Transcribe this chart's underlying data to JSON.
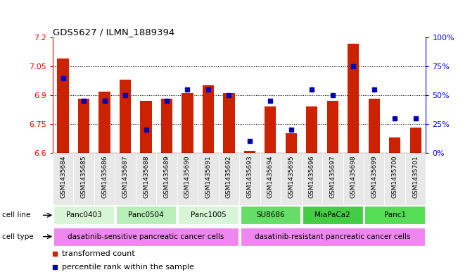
{
  "title": "GDS5627 / ILMN_1889394",
  "samples": [
    "GSM1435684",
    "GSM1435685",
    "GSM1435686",
    "GSM1435687",
    "GSM1435688",
    "GSM1435689",
    "GSM1435690",
    "GSM1435691",
    "GSM1435692",
    "GSM1435693",
    "GSM1435694",
    "GSM1435695",
    "GSM1435696",
    "GSM1435697",
    "GSM1435698",
    "GSM1435699",
    "GSM1435700",
    "GSM1435701"
  ],
  "bar_values": [
    7.09,
    6.88,
    6.92,
    6.98,
    6.87,
    6.88,
    6.91,
    6.95,
    6.91,
    6.61,
    6.84,
    6.7,
    6.84,
    6.87,
    7.17,
    6.88,
    6.68,
    6.73
  ],
  "blue_percentile": [
    65,
    45,
    45,
    50,
    20,
    45,
    55,
    55,
    50,
    10,
    45,
    20,
    55,
    50,
    75,
    55,
    30,
    30
  ],
  "ylim": [
    6.6,
    7.2
  ],
  "yticks": [
    6.6,
    6.75,
    6.9,
    7.05,
    7.2
  ],
  "ytick_labels": [
    "6.6",
    "6.75",
    "6.9",
    "7.05",
    "7.2"
  ],
  "right_yticks": [
    0,
    25,
    50,
    75,
    100
  ],
  "right_ytick_labels": [
    "0%",
    "25%",
    "50%",
    "75%",
    "100%"
  ],
  "bar_color": "#cc2200",
  "blue_color": "#0000bb",
  "bar_bottom": 6.6,
  "cell_lines": [
    {
      "label": "Panc0403",
      "start": 0,
      "end": 3,
      "color": "#d8f5d8"
    },
    {
      "label": "Panc0504",
      "start": 3,
      "end": 6,
      "color": "#b8eeb8"
    },
    {
      "label": "Panc1005",
      "start": 6,
      "end": 9,
      "color": "#d8f5d8"
    },
    {
      "label": "SU8686",
      "start": 9,
      "end": 12,
      "color": "#66dd66"
    },
    {
      "label": "MiaPaCa2",
      "start": 12,
      "end": 15,
      "color": "#44cc44"
    },
    {
      "label": "Panc1",
      "start": 15,
      "end": 18,
      "color": "#55dd55"
    }
  ],
  "cell_types": [
    {
      "label": "dasatinib-sensitive pancreatic cancer cells",
      "start": 0,
      "end": 9,
      "color": "#ee88ee"
    },
    {
      "label": "dasatinib-resistant pancreatic cancer cells",
      "start": 9,
      "end": 18,
      "color": "#ee88ee"
    }
  ],
  "legend_items": [
    {
      "label": "transformed count",
      "color": "#cc2200",
      "marker": "s"
    },
    {
      "label": "percentile rank within the sample",
      "color": "#0000bb",
      "marker": "s"
    }
  ],
  "grid_color": "black",
  "grid_style": "dotted",
  "bg_color": "#e8e8e8"
}
